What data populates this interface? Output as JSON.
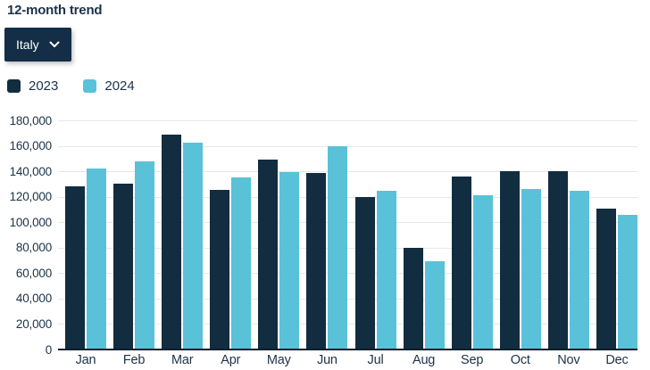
{
  "header": {
    "title": "12-month trend"
  },
  "filter": {
    "selected": "Italy",
    "icon": "chevron-down-icon"
  },
  "colors": {
    "series_2023": "#122c40",
    "series_2024": "#59c2d8",
    "text": "#1c3248",
    "gridline": "#e7e7e7",
    "axis_line": "#0d1f2d",
    "dropdown_bg": "#132e46",
    "dropdown_text": "#ffffff",
    "background": "#ffffff"
  },
  "chart_data": {
    "type": "bar",
    "title": "12-month trend",
    "xlabel": "",
    "ylabel": "",
    "grid": "horizontal",
    "legend_position": "top-left",
    "categories": [
      "Jan",
      "Feb",
      "Mar",
      "Apr",
      "May",
      "Jun",
      "Jul",
      "Aug",
      "Sep",
      "Oct",
      "Nov",
      "Dec"
    ],
    "series": [
      {
        "name": "2023",
        "color": "#122c40",
        "values": [
          128500,
          130000,
          168500,
          125500,
          149000,
          139000,
          119500,
          79500,
          136000,
          140000,
          140000,
          111000
        ]
      },
      {
        "name": "2024",
        "color": "#59c2d8",
        "values": [
          142000,
          147500,
          162500,
          135500,
          139500,
          160000,
          124500,
          69000,
          121500,
          126000,
          124500,
          105500
        ]
      }
    ],
    "ylim": [
      0,
      180000
    ],
    "yticks": [
      {
        "value": 0,
        "label": "0"
      },
      {
        "value": 20000,
        "label": "20,000"
      },
      {
        "value": 40000,
        "label": "40,000"
      },
      {
        "value": 60000,
        "label": "60,000"
      },
      {
        "value": 80000,
        "label": "80,000"
      },
      {
        "value": 100000,
        "label": "100,000"
      },
      {
        "value": 120000,
        "label": "120,000"
      },
      {
        "value": 140000,
        "label": "140,000"
      },
      {
        "value": 160000,
        "label": "160,000"
      },
      {
        "value": 180000,
        "label": "180,000"
      }
    ]
  }
}
